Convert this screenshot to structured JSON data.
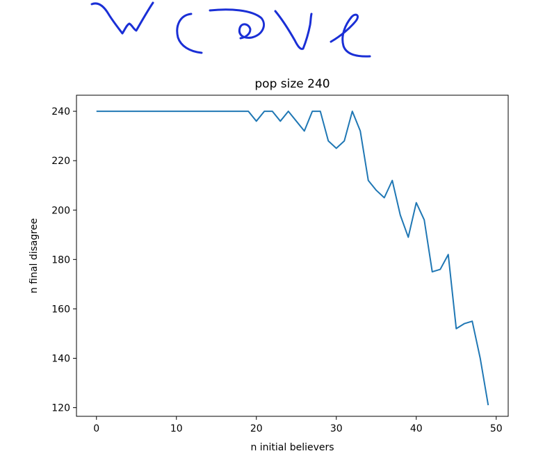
{
  "handwriting": {
    "text": "wave",
    "color": "#1a2fd6"
  },
  "chart_data": {
    "type": "line",
    "title": "pop size 240",
    "xlabel": "n initial believers",
    "ylabel": "n final disagree",
    "xlim": [
      -2.5,
      51.5
    ],
    "ylim": [
      116.5,
      246.5
    ],
    "xticks": [
      0,
      10,
      20,
      30,
      40,
      50
    ],
    "yticks": [
      120,
      140,
      160,
      180,
      200,
      220,
      240
    ],
    "grid": false,
    "line_color": "#1f77b4",
    "x": [
      0,
      1,
      2,
      3,
      4,
      5,
      6,
      7,
      8,
      9,
      10,
      11,
      12,
      13,
      14,
      15,
      16,
      17,
      18,
      19,
      20,
      21,
      22,
      23,
      24,
      25,
      26,
      27,
      28,
      29,
      30,
      31,
      32,
      33,
      34,
      35,
      36,
      37,
      38,
      39,
      40,
      41,
      42,
      43,
      44,
      45,
      46,
      47,
      48,
      49
    ],
    "series": [
      {
        "values": [
          240,
          240,
          240,
          240,
          240,
          240,
          240,
          240,
          240,
          240,
          240,
          240,
          240,
          240,
          240,
          240,
          240,
          240,
          240,
          240,
          236,
          240,
          240,
          236,
          240,
          236,
          232,
          240,
          240,
          228,
          225,
          228,
          240,
          232,
          212,
          208,
          205,
          212,
          198,
          189,
          203,
          196,
          175,
          176,
          182,
          152,
          154,
          155,
          140,
          121
        ]
      }
    ]
  }
}
